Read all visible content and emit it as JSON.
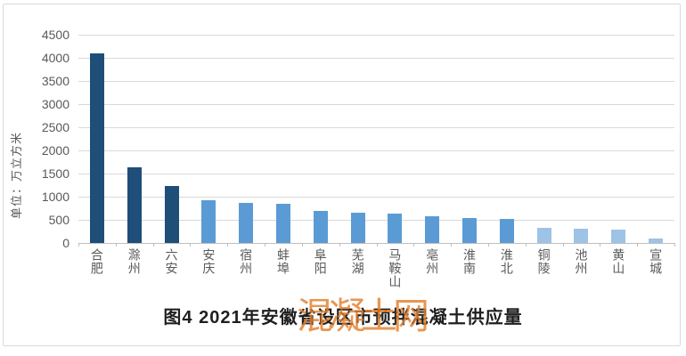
{
  "figure": {
    "watermark": "混凝土网"
  },
  "chart_data": {
    "type": "bar",
    "title": "图4  2021年安徽省设区市预拌混凝土供应量",
    "xlabel": "",
    "ylabel": "单位：万立方米",
    "categories": [
      "合肥",
      "滁州",
      "六安",
      "安庆",
      "宿州",
      "蚌埠",
      "阜阳",
      "芜湖",
      "马鞍山",
      "亳州",
      "淮南",
      "淮北",
      "铜陵",
      "池州",
      "黄山",
      "宣城"
    ],
    "values": [
      4100,
      1640,
      1230,
      930,
      870,
      840,
      690,
      660,
      630,
      570,
      530,
      510,
      330,
      300,
      280,
      105
    ],
    "bar_colors": [
      "#1f4e79",
      "#1f4e79",
      "#1f4e79",
      "#5b9bd5",
      "#5b9bd5",
      "#5b9bd5",
      "#5b9bd5",
      "#5b9bd5",
      "#5b9bd5",
      "#5b9bd5",
      "#5b9bd5",
      "#5b9bd5",
      "#9dc3e6",
      "#9dc3e6",
      "#9dc3e6",
      "#9dc3e6"
    ],
    "ylim": [
      0,
      4500
    ],
    "ytick_step": 500,
    "ytick_labels": [
      "0",
      "500",
      "1000",
      "1500",
      "2000",
      "2500",
      "3000",
      "3500",
      "4000",
      "4500"
    ],
    "grid": true,
    "legend": "none",
    "colors": {
      "dark_series": "#1f4e79",
      "medium_series": "#5b9bd5",
      "light_series": "#9dc3e6",
      "gridline": "#d9d9d9",
      "axis_text": "#595959",
      "caption_text": "#1f1f1f",
      "watermark": "#e37f2b"
    }
  }
}
